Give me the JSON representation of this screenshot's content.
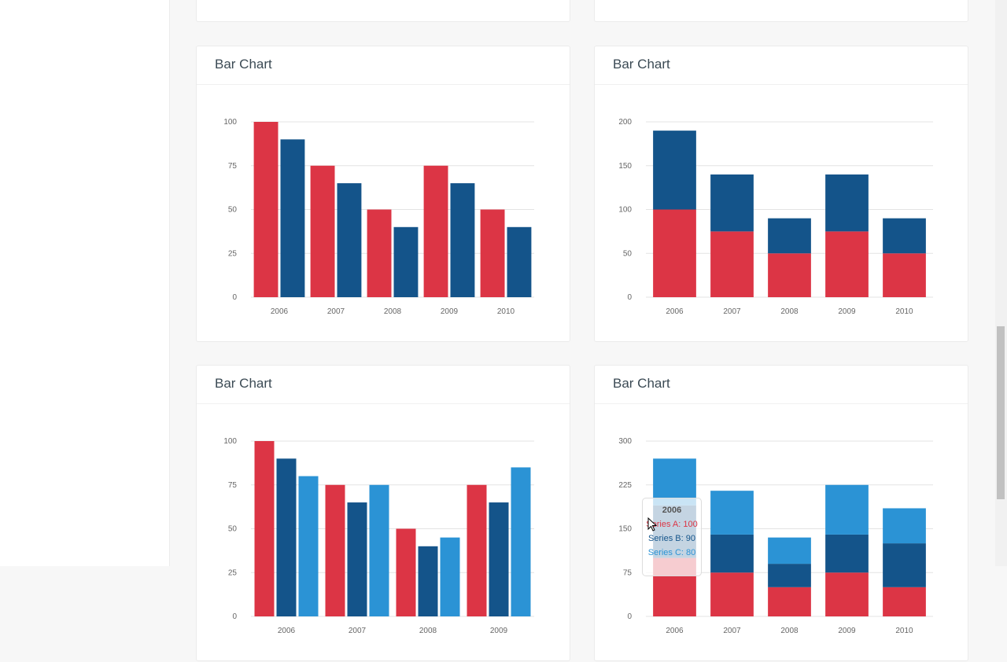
{
  "cards": [
    {
      "title": "Bar Chart"
    },
    {
      "title": "Bar Chart"
    },
    {
      "title": "Bar Chart"
    },
    {
      "title": "Bar Chart"
    }
  ],
  "colors": {
    "a": "#dc3545",
    "b": "#14548a",
    "c": "#2b93d5"
  },
  "chart_data": [
    {
      "type": "bar",
      "title": "",
      "categories": [
        "2006",
        "2007",
        "2008",
        "2009",
        "2010"
      ],
      "ylim": [
        0,
        100
      ],
      "yticks": [
        "0",
        "25",
        "50",
        "75",
        "100"
      ],
      "grid": true,
      "series": [
        {
          "values": [
            100,
            75,
            50,
            75,
            50
          ]
        },
        {
          "values": [
            90,
            65,
            40,
            65,
            40
          ]
        }
      ]
    },
    {
      "type": "bar",
      "stacked": true,
      "title": "",
      "categories": [
        "2006",
        "2007",
        "2008",
        "2009",
        "2010"
      ],
      "ylim": [
        0,
        200
      ],
      "yticks": [
        "0",
        "50",
        "100",
        "150",
        "200"
      ],
      "grid": true,
      "series": [
        {
          "values": [
            100,
            75,
            50,
            75,
            50
          ]
        },
        {
          "values": [
            90,
            65,
            40,
            65,
            40
          ]
        }
      ]
    },
    {
      "type": "bar",
      "title": "",
      "categories": [
        "2006",
        "2007",
        "2008",
        "2009"
      ],
      "ylim": [
        0,
        100
      ],
      "yticks": [
        "0",
        "25",
        "50",
        "75",
        "100"
      ],
      "grid": true,
      "series": [
        {
          "values": [
            100,
            75,
            50,
            75
          ]
        },
        {
          "values": [
            90,
            65,
            40,
            65
          ]
        },
        {
          "values": [
            80,
            75,
            45,
            85
          ]
        }
      ]
    },
    {
      "type": "bar",
      "stacked": true,
      "title": "",
      "categories": [
        "2006",
        "2007",
        "2008",
        "2009",
        "2010"
      ],
      "ylim": [
        0,
        300
      ],
      "yticks": [
        "0",
        "75",
        "150",
        "225",
        "300"
      ],
      "grid": true,
      "series": [
        {
          "name": "Series A",
          "values": [
            100,
            75,
            50,
            75,
            50
          ]
        },
        {
          "name": "Series B",
          "values": [
            90,
            65,
            40,
            65,
            75
          ]
        },
        {
          "name": "Series C",
          "values": [
            80,
            75,
            45,
            85,
            60
          ]
        }
      ]
    }
  ],
  "tooltip": {
    "title": "2006",
    "a": "Series A: 100",
    "b": "Series B: 90",
    "c": "Series C: 80"
  }
}
